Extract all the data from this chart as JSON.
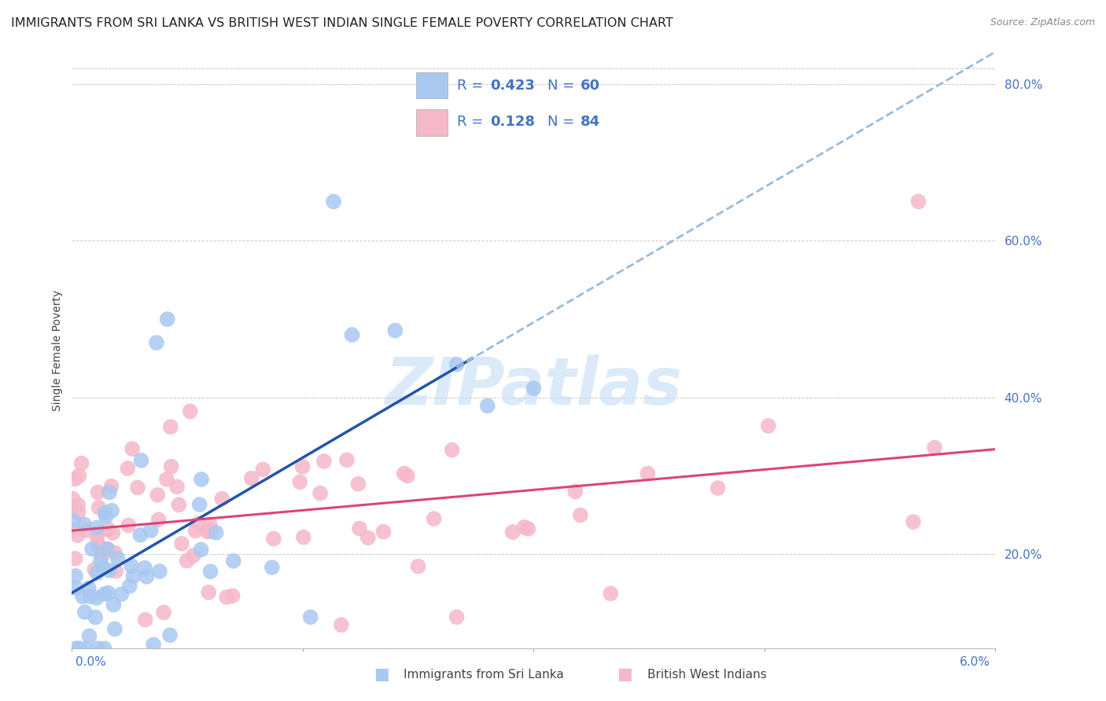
{
  "title": "IMMIGRANTS FROM SRI LANKA VS BRITISH WEST INDIAN SINGLE FEMALE POVERTY CORRELATION CHART",
  "source": "Source: ZipAtlas.com",
  "ylabel": "Single Female Poverty",
  "xlim": [
    0.0,
    6.0
  ],
  "ylim": [
    8.0,
    84.0
  ],
  "yticks": [
    20.0,
    40.0,
    60.0,
    80.0
  ],
  "series1": {
    "label": "Immigrants from Sri Lanka",
    "R": 0.423,
    "N": 60,
    "color": "#a8c8f0",
    "trend_color": "#2255aa",
    "trend_color_dashed": "#99bbdd"
  },
  "series2": {
    "label": "British West Indians",
    "R": 0.128,
    "N": 84,
    "color": "#f5b8c8",
    "trend_color": "#dd4477"
  },
  "watermark_text": "ZIPatlas",
  "watermark_color": "#c8dff5",
  "background_color": "#ffffff",
  "grid_color": "#cccccc",
  "axis_color": "#4472c4",
  "title_color": "#222222",
  "title_fontsize": 11.5,
  "axis_label_fontsize": 10,
  "tick_fontsize": 11,
  "legend_fontsize": 13,
  "source_fontsize": 9
}
